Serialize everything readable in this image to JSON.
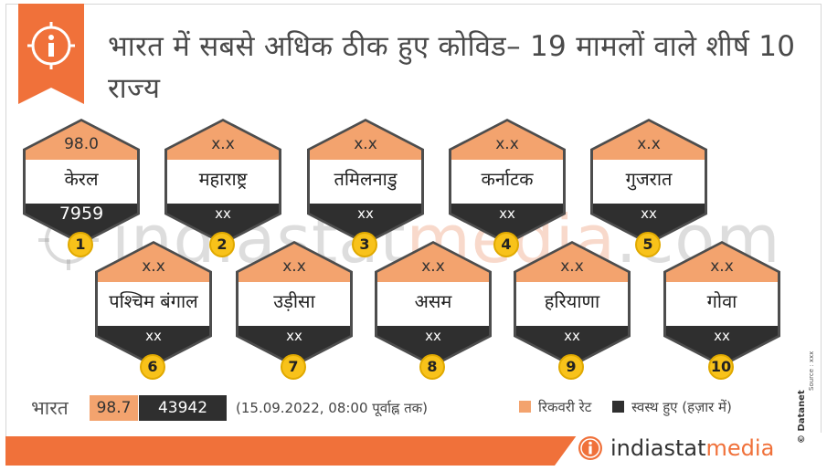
{
  "title": "भारत में सबसे अधिक ठीक हुए कोविड– 19 मामलों वाले शीर्ष 10 राज्य",
  "colors": {
    "accent": "#f0713a",
    "recovery": "#f3a36e",
    "dark": "#2f2f2f",
    "rank": "#f8c21a"
  },
  "icons": {
    "info": "info-icon",
    "brand": "indiastat-i-icon"
  },
  "states": [
    {
      "rank": "1",
      "rate": "98.0",
      "name": "केरल",
      "count": "7959"
    },
    {
      "rank": "2",
      "rate": "x.x",
      "name": "महाराष्ट्र",
      "count": "xx"
    },
    {
      "rank": "3",
      "rate": "x.x",
      "name": "तमिलनाडु",
      "count": "xx"
    },
    {
      "rank": "4",
      "rate": "x.x",
      "name": "कर्नाटक",
      "count": "xx"
    },
    {
      "rank": "5",
      "rate": "x.x",
      "name": "गुजरात",
      "count": "xx"
    },
    {
      "rank": "6",
      "rate": "x.x",
      "name": "पश्चिम बंगाल",
      "count": "xx"
    },
    {
      "rank": "7",
      "rate": "x.x",
      "name": "उड़ीसा",
      "count": "xx"
    },
    {
      "rank": "8",
      "rate": "x.x",
      "name": "असम",
      "count": "xx"
    },
    {
      "rank": "9",
      "rate": "x.x",
      "name": "हरियाणा",
      "count": "xx"
    },
    {
      "rank": "10",
      "rate": "x.x",
      "name": "गोवा",
      "count": "xx"
    }
  ],
  "india": {
    "label": "भारत",
    "rate": "98.7",
    "count": "43942",
    "as_of": "(15.09.2022, 08:00 पूर्वाह्न तक)"
  },
  "legend": {
    "recovery": "रिकवरी रेट",
    "healthy": "स्वस्थ हुए (हज़ार में)"
  },
  "watermark": {
    "part1": "indiastat",
    "part2": "media",
    "part3": ".com"
  },
  "brand": {
    "part1": "indiastat",
    "part2": "media"
  },
  "side": {
    "datanet": "© Datanet",
    "source": "Source : xxx"
  }
}
